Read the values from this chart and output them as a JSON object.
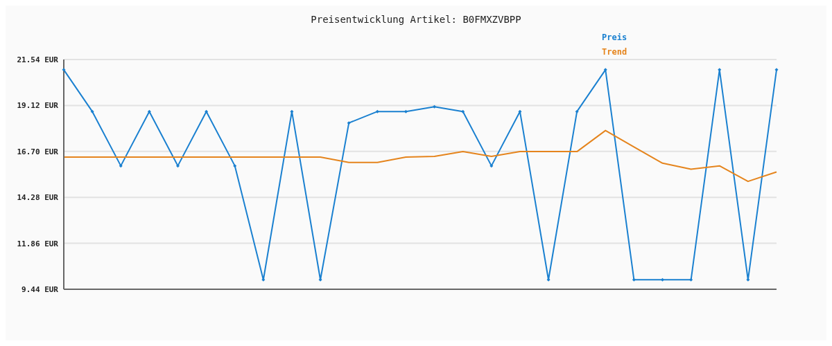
{
  "chart_data": {
    "type": "line",
    "title": "Preisentwicklung Artikel: B0FMXZVBPP",
    "categories": [
      null,
      null,
      null,
      null,
      null,
      null,
      null,
      null,
      null,
      null,
      null,
      null,
      null,
      null,
      null,
      null,
      null,
      null,
      null,
      null,
      null,
      null,
      null,
      null,
      null,
      null
    ],
    "series": [
      {
        "name": "Preis",
        "color": "#1a80d0",
        "marker": "diamond",
        "values": [
          21.0,
          18.8,
          15.94,
          18.8,
          15.94,
          18.8,
          15.94,
          9.94,
          18.8,
          9.94,
          18.2,
          18.8,
          18.8,
          19.05,
          18.8,
          15.94,
          18.8,
          9.94,
          18.8,
          21.0,
          9.94,
          9.94,
          9.94,
          21.0,
          9.94,
          21.0
        ]
      },
      {
        "name": "Trend",
        "color": "#e5841c",
        "marker": "none",
        "values": [
          16.4,
          16.4,
          16.4,
          16.4,
          16.4,
          16.4,
          16.4,
          16.4,
          16.4,
          16.4,
          16.12,
          16.12,
          16.4,
          16.44,
          16.69,
          16.44,
          16.69,
          16.69,
          16.69,
          17.8,
          16.93,
          16.08,
          15.76,
          15.94,
          15.12,
          15.62
        ]
      }
    ],
    "ylim": [
      9.44,
      21.54
    ],
    "yticks": [
      {
        "value": 9.44,
        "label": "9.44 EUR"
      },
      {
        "value": 11.86,
        "label": "11.86 EUR"
      },
      {
        "value": 14.28,
        "label": "14.28 EUR"
      },
      {
        "value": 16.7,
        "label": "16.70 EUR"
      },
      {
        "value": 19.12,
        "label": "19.12 EUR"
      },
      {
        "value": 21.54,
        "label": "21.54 EUR"
      }
    ],
    "grid": "y",
    "legend": "top right",
    "tick_labels": "y",
    "line_style": "solid"
  }
}
